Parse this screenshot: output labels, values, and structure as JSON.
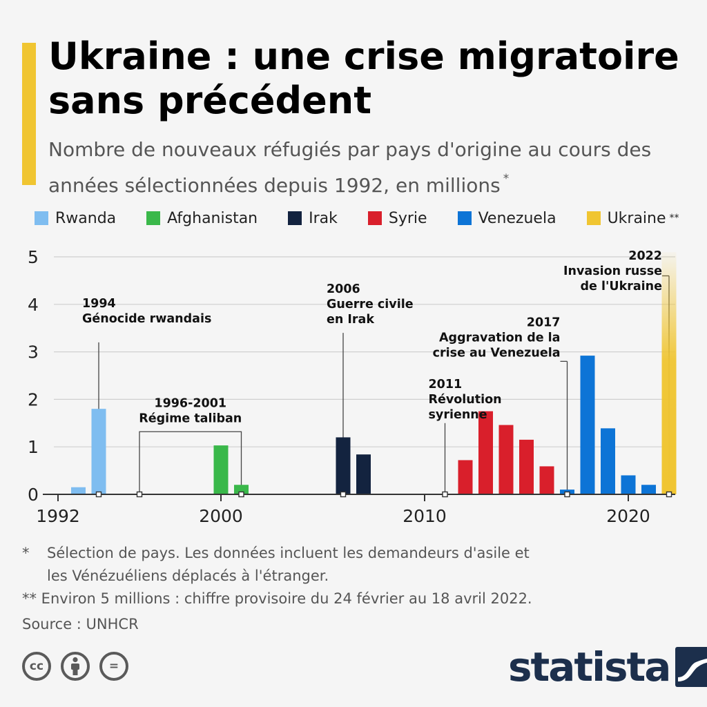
{
  "title": "Ukraine : une crise migratoire sans précédent",
  "subtitle": "Nombre de nouveaux réfugiés par pays d'origine au cours des années sélectionnées depuis 1992, en millions",
  "subtitle_mark": "*",
  "legend": [
    {
      "label": "Rwanda",
      "color": "#7fbdf0"
    },
    {
      "label": "Afghanistan",
      "color": "#3ab84a"
    },
    {
      "label": "Irak",
      "color": "#13233f"
    },
    {
      "label": "Syrie",
      "color": "#d91f2b"
    },
    {
      "label": "Venezuela",
      "color": "#0d74d6"
    },
    {
      "label": "Ukraine",
      "color": "#f0c531",
      "mark": "**"
    }
  ],
  "chart_data": {
    "type": "bar",
    "xlim": [
      1992,
      2022
    ],
    "ylim": [
      0,
      5
    ],
    "x_ticks": [
      1992,
      2000,
      2010,
      2020
    ],
    "x_tick_labels": [
      "1992",
      "2000",
      "2010",
      "2020"
    ],
    "y_ticks": [
      0,
      1,
      2,
      3,
      4,
      5
    ],
    "y_tick_labels": [
      "0",
      "1",
      "2",
      "3",
      "4",
      "5"
    ],
    "grid": true,
    "legend_position": "top",
    "series": [
      {
        "name": "Rwanda",
        "color": "#7fbdf0",
        "points": [
          {
            "x": 1993,
            "y": 0.15
          },
          {
            "x": 1994,
            "y": 1.8
          }
        ]
      },
      {
        "name": "Afghanistan",
        "color": "#3ab84a",
        "points": [
          {
            "x": 2000,
            "y": 1.03
          },
          {
            "x": 2001,
            "y": 0.2
          }
        ]
      },
      {
        "name": "Irak",
        "color": "#13233f",
        "points": [
          {
            "x": 2006,
            "y": 1.2
          },
          {
            "x": 2007,
            "y": 0.84
          }
        ]
      },
      {
        "name": "Syrie",
        "color": "#d91f2b",
        "points": [
          {
            "x": 2012,
            "y": 0.72
          },
          {
            "x": 2013,
            "y": 1.75
          },
          {
            "x": 2014,
            "y": 1.46
          },
          {
            "x": 2015,
            "y": 1.15
          },
          {
            "x": 2016,
            "y": 0.59
          }
        ]
      },
      {
        "name": "Venezuela",
        "color": "#0d74d6",
        "points": [
          {
            "x": 2017,
            "y": 0.1
          },
          {
            "x": 2018,
            "y": 2.92
          },
          {
            "x": 2019,
            "y": 1.39
          },
          {
            "x": 2020,
            "y": 0.4
          },
          {
            "x": 2021,
            "y": 0.2
          }
        ]
      },
      {
        "name": "Ukraine",
        "color": "#f0c531",
        "gradient": true,
        "points": [
          {
            "x": 2022,
            "y": 5.1
          }
        ]
      }
    ],
    "annotations": [
      {
        "lines": [
          "1994",
          "Génocide rwandais"
        ],
        "x": 1994,
        "label_y": 4.0,
        "line_top": 3.2,
        "align": "start"
      },
      {
        "lines": [
          "1996-2001",
          "Régime taliban"
        ],
        "x_range": [
          1996,
          2001
        ],
        "label_y": 1.9,
        "align": "middle"
      },
      {
        "lines": [
          "2006",
          "Guerre civile",
          "en Irak"
        ],
        "x": 2006,
        "label_y": 4.3,
        "line_top": 3.4,
        "align": "start"
      },
      {
        "lines": [
          "2011",
          "Révolution",
          "syrienne"
        ],
        "x": 2011,
        "label_y": 2.3,
        "line_top": 1.5,
        "align": "start"
      },
      {
        "lines": [
          "2017",
          "Aggravation de la",
          "crise au Venezuela"
        ],
        "x": 2017,
        "label_y": 3.6,
        "line_top": 2.8,
        "align": "end"
      },
      {
        "lines": [
          "2022",
          "Invasion russe",
          "de l'Ukraine"
        ],
        "x": 2022,
        "label_y": 5.0,
        "line_top": 4.6,
        "align": "end"
      }
    ]
  },
  "notes": {
    "note1_mark": "*",
    "note1_line1": "Sélection de pays. Les données incluent les demandeurs d'asile et",
    "note1_line2": "les Vénézuéliens déplacés à l'étranger.",
    "note2": "** Environ 5 millions : chiffre provisoire du 24 février au 18 avril 2022.",
    "source": "Source : UNHCR"
  },
  "footer": {
    "cc_label": "cc",
    "eq_label": "=",
    "logo_text": "statista"
  }
}
